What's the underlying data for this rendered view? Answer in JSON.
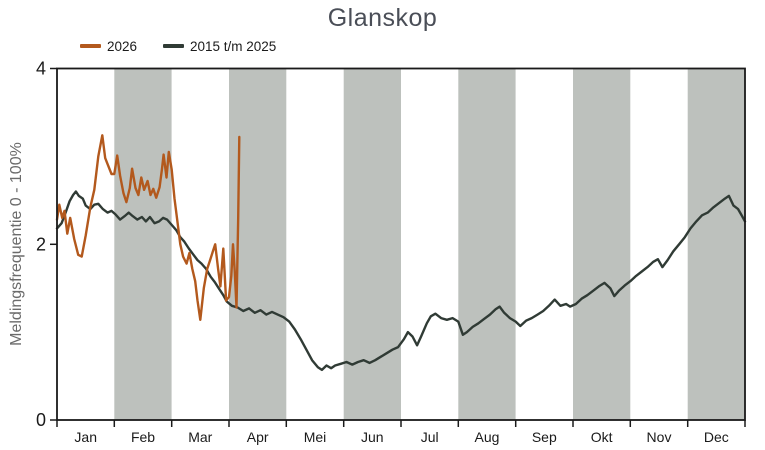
{
  "title": "Glanskop",
  "legend": {
    "items": [
      {
        "label": "2026",
        "color": "#B3591D"
      },
      {
        "label": "2015 t/m 2025",
        "color": "#303B35"
      }
    ]
  },
  "y_axis": {
    "title": "Meldingsfrequentie 0 - 100%",
    "tick_labels": [
      "0",
      "2",
      "4"
    ]
  },
  "styles": {
    "band_color": "#BDC1BD",
    "frame_color": "#1A1A1A",
    "tick_label_color": "#1A1A1A",
    "title_color": "#4A4E57",
    "axis_title_color": "#6B6B6B",
    "background": "#FFFFFF",
    "shaded_month_indices": [
      1,
      3,
      5,
      7,
      9,
      11
    ]
  },
  "chart_data": {
    "type": "line",
    "title": "Glanskop",
    "xlabel": "",
    "ylabel": "Meldingsfrequentie 0 - 100%",
    "ylim": [
      0,
      4
    ],
    "yticks": [
      0,
      2,
      4
    ],
    "xlim_months": [
      0,
      12
    ],
    "x_tick_labels": [
      "Jan",
      "Feb",
      "Mar",
      "Apr",
      "Mei",
      "Jun",
      "Jul",
      "Aug",
      "Sep",
      "Okt",
      "Nov",
      "Dec"
    ],
    "shaded_months": [
      "Feb",
      "Apr",
      "Jun",
      "Aug",
      "Okt",
      "Dec"
    ],
    "grid": false,
    "legend_position": "top-left",
    "series": [
      {
        "name": "2026",
        "color": "#B3591D",
        "points": [
          [
            0.0,
            2.28
          ],
          [
            0.04,
            2.45
          ],
          [
            0.09,
            2.3
          ],
          [
            0.13,
            2.38
          ],
          [
            0.18,
            2.12
          ],
          [
            0.23,
            2.3
          ],
          [
            0.3,
            2.06
          ],
          [
            0.37,
            1.88
          ],
          [
            0.43,
            1.86
          ],
          [
            0.5,
            2.1
          ],
          [
            0.58,
            2.42
          ],
          [
            0.65,
            2.62
          ],
          [
            0.72,
            3.0
          ],
          [
            0.79,
            3.24
          ],
          [
            0.84,
            2.98
          ],
          [
            0.89,
            2.9
          ],
          [
            0.95,
            2.8
          ],
          [
            1.0,
            2.8
          ],
          [
            1.05,
            3.01
          ],
          [
            1.1,
            2.78
          ],
          [
            1.16,
            2.58
          ],
          [
            1.21,
            2.48
          ],
          [
            1.27,
            2.64
          ],
          [
            1.31,
            2.86
          ],
          [
            1.37,
            2.64
          ],
          [
            1.42,
            2.56
          ],
          [
            1.47,
            2.76
          ],
          [
            1.52,
            2.62
          ],
          [
            1.58,
            2.72
          ],
          [
            1.63,
            2.56
          ],
          [
            1.68,
            2.63
          ],
          [
            1.73,
            2.53
          ],
          [
            1.79,
            2.65
          ],
          [
            1.83,
            2.85
          ],
          [
            1.86,
            3.02
          ],
          [
            1.91,
            2.76
          ],
          [
            1.95,
            3.05
          ],
          [
            2.0,
            2.85
          ],
          [
            2.05,
            2.52
          ],
          [
            2.1,
            2.26
          ],
          [
            2.15,
            2.0
          ],
          [
            2.2,
            1.86
          ],
          [
            2.26,
            1.78
          ],
          [
            2.31,
            1.9
          ],
          [
            2.36,
            1.72
          ],
          [
            2.41,
            1.58
          ],
          [
            2.45,
            1.36
          ],
          [
            2.5,
            1.14
          ],
          [
            2.56,
            1.5
          ],
          [
            2.62,
            1.72
          ],
          [
            2.67,
            1.82
          ],
          [
            2.72,
            1.92
          ],
          [
            2.76,
            2.0
          ],
          [
            2.81,
            1.72
          ],
          [
            2.85,
            1.52
          ],
          [
            2.9,
            1.95
          ],
          [
            2.95,
            1.36
          ],
          [
            3.0,
            1.4
          ],
          [
            3.04,
            1.64
          ],
          [
            3.07,
            2.0
          ],
          [
            3.1,
            1.7
          ],
          [
            3.13,
            1.28
          ],
          [
            3.16,
            2.3
          ],
          [
            3.18,
            3.22
          ]
        ]
      },
      {
        "name": "2015 t/m 2025",
        "color": "#303B35",
        "points": [
          [
            0.0,
            2.18
          ],
          [
            0.08,
            2.24
          ],
          [
            0.15,
            2.36
          ],
          [
            0.22,
            2.49
          ],
          [
            0.28,
            2.56
          ],
          [
            0.33,
            2.6
          ],
          [
            0.38,
            2.55
          ],
          [
            0.45,
            2.52
          ],
          [
            0.5,
            2.44
          ],
          [
            0.58,
            2.4
          ],
          [
            0.65,
            2.45
          ],
          [
            0.72,
            2.46
          ],
          [
            0.8,
            2.4
          ],
          [
            0.88,
            2.36
          ],
          [
            0.95,
            2.38
          ],
          [
            1.02,
            2.34
          ],
          [
            1.1,
            2.28
          ],
          [
            1.18,
            2.32
          ],
          [
            1.25,
            2.36
          ],
          [
            1.32,
            2.32
          ],
          [
            1.4,
            2.28
          ],
          [
            1.48,
            2.31
          ],
          [
            1.55,
            2.26
          ],
          [
            1.62,
            2.31
          ],
          [
            1.7,
            2.24
          ],
          [
            1.78,
            2.26
          ],
          [
            1.85,
            2.3
          ],
          [
            1.92,
            2.28
          ],
          [
            2.0,
            2.22
          ],
          [
            2.08,
            2.16
          ],
          [
            2.15,
            2.08
          ],
          [
            2.22,
            2.03
          ],
          [
            2.3,
            1.95
          ],
          [
            2.38,
            1.88
          ],
          [
            2.45,
            1.82
          ],
          [
            2.52,
            1.78
          ],
          [
            2.6,
            1.72
          ],
          [
            2.68,
            1.63
          ],
          [
            2.75,
            1.57
          ],
          [
            2.82,
            1.5
          ],
          [
            2.9,
            1.42
          ],
          [
            2.96,
            1.35
          ],
          [
            3.05,
            1.3
          ],
          [
            3.15,
            1.28
          ],
          [
            3.25,
            1.24
          ],
          [
            3.35,
            1.27
          ],
          [
            3.45,
            1.22
          ],
          [
            3.55,
            1.25
          ],
          [
            3.65,
            1.2
          ],
          [
            3.75,
            1.23
          ],
          [
            3.85,
            1.2
          ],
          [
            3.95,
            1.17
          ],
          [
            4.05,
            1.12
          ],
          [
            4.15,
            1.03
          ],
          [
            4.25,
            0.92
          ],
          [
            4.35,
            0.8
          ],
          [
            4.45,
            0.68
          ],
          [
            4.55,
            0.6
          ],
          [
            4.62,
            0.57
          ],
          [
            4.7,
            0.62
          ],
          [
            4.78,
            0.59
          ],
          [
            4.85,
            0.62
          ],
          [
            4.95,
            0.64
          ],
          [
            5.05,
            0.66
          ],
          [
            5.15,
            0.63
          ],
          [
            5.25,
            0.66
          ],
          [
            5.35,
            0.68
          ],
          [
            5.45,
            0.65
          ],
          [
            5.55,
            0.68
          ],
          [
            5.65,
            0.72
          ],
          [
            5.75,
            0.76
          ],
          [
            5.85,
            0.8
          ],
          [
            5.95,
            0.83
          ],
          [
            6.05,
            0.92
          ],
          [
            6.12,
            1.0
          ],
          [
            6.2,
            0.95
          ],
          [
            6.28,
            0.85
          ],
          [
            6.35,
            0.95
          ],
          [
            6.45,
            1.1
          ],
          [
            6.52,
            1.18
          ],
          [
            6.6,
            1.21
          ],
          [
            6.7,
            1.16
          ],
          [
            6.8,
            1.14
          ],
          [
            6.9,
            1.16
          ],
          [
            7.0,
            1.12
          ],
          [
            7.08,
            0.97
          ],
          [
            7.15,
            1.0
          ],
          [
            7.25,
            1.06
          ],
          [
            7.35,
            1.1
          ],
          [
            7.45,
            1.15
          ],
          [
            7.55,
            1.2
          ],
          [
            7.65,
            1.26
          ],
          [
            7.72,
            1.29
          ],
          [
            7.8,
            1.22
          ],
          [
            7.9,
            1.16
          ],
          [
            8.0,
            1.12
          ],
          [
            8.08,
            1.07
          ],
          [
            8.18,
            1.13
          ],
          [
            8.28,
            1.16
          ],
          [
            8.38,
            1.2
          ],
          [
            8.48,
            1.24
          ],
          [
            8.58,
            1.3
          ],
          [
            8.68,
            1.37
          ],
          [
            8.78,
            1.3
          ],
          [
            8.88,
            1.32
          ],
          [
            8.95,
            1.29
          ],
          [
            9.05,
            1.32
          ],
          [
            9.15,
            1.38
          ],
          [
            9.25,
            1.42
          ],
          [
            9.35,
            1.47
          ],
          [
            9.45,
            1.52
          ],
          [
            9.55,
            1.56
          ],
          [
            9.65,
            1.5
          ],
          [
            9.72,
            1.41
          ],
          [
            9.8,
            1.47
          ],
          [
            9.9,
            1.53
          ],
          [
            10.0,
            1.58
          ],
          [
            10.1,
            1.64
          ],
          [
            10.2,
            1.69
          ],
          [
            10.3,
            1.74
          ],
          [
            10.4,
            1.8
          ],
          [
            10.48,
            1.83
          ],
          [
            10.56,
            1.74
          ],
          [
            10.65,
            1.82
          ],
          [
            10.75,
            1.92
          ],
          [
            10.85,
            2.0
          ],
          [
            10.95,
            2.08
          ],
          [
            11.05,
            2.18
          ],
          [
            11.15,
            2.26
          ],
          [
            11.25,
            2.33
          ],
          [
            11.35,
            2.36
          ],
          [
            11.45,
            2.42
          ],
          [
            11.55,
            2.47
          ],
          [
            11.65,
            2.52
          ],
          [
            11.72,
            2.55
          ],
          [
            11.8,
            2.44
          ],
          [
            11.88,
            2.4
          ],
          [
            11.95,
            2.32
          ],
          [
            12.0,
            2.26
          ]
        ]
      }
    ]
  }
}
